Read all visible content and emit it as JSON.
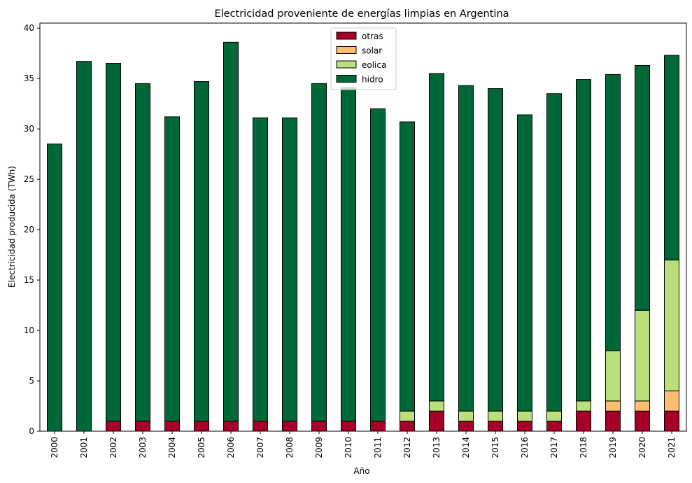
{
  "chart_data": {
    "type": "bar",
    "stacked": true,
    "title": "Electricidad proveniente de energías limpias en Argentina",
    "xlabel": "Año",
    "ylabel": "Electricidad producida (TWh)",
    "ylim": [
      0,
      40.5
    ],
    "yticks": [
      0,
      5,
      10,
      15,
      20,
      25,
      30,
      35,
      40
    ],
    "legend_position": "top-center",
    "categories": [
      "2000",
      "2001",
      "2002",
      "2003",
      "2004",
      "2005",
      "2006",
      "2007",
      "2008",
      "2009",
      "2010",
      "2011",
      "2012",
      "2013",
      "2014",
      "2015",
      "2016",
      "2017",
      "2018",
      "2019",
      "2020",
      "2021"
    ],
    "series": [
      {
        "name": "otras",
        "color": "#a50026",
        "values": [
          0,
          0,
          1,
          1,
          1,
          1,
          1,
          1,
          1,
          1,
          1,
          1,
          1,
          2,
          1,
          1,
          1,
          1,
          2,
          2,
          2,
          2
        ]
      },
      {
        "name": "solar",
        "color": "#fdbf6f",
        "values": [
          0,
          0,
          0,
          0,
          0,
          0,
          0,
          0,
          0,
          0,
          0,
          0,
          0,
          0,
          0,
          0,
          0,
          0,
          0,
          1,
          1,
          2
        ]
      },
      {
        "name": "eolica",
        "color": "#b9e07a",
        "values": [
          0,
          0,
          0,
          0,
          0,
          0,
          0,
          0,
          0,
          0,
          0,
          0,
          1,
          1,
          1,
          1,
          1,
          1,
          1,
          5,
          9,
          13
        ]
      },
      {
        "name": "hidro",
        "color": "#006837",
        "values": [
          28.5,
          36.7,
          35.5,
          33.5,
          30.2,
          33.7,
          37.6,
          30.1,
          30.1,
          33.5,
          33.1,
          31.0,
          28.7,
          32.5,
          32.3,
          32.0,
          29.4,
          31.5,
          31.9,
          27.4,
          24.3,
          20.3
        ]
      }
    ]
  }
}
